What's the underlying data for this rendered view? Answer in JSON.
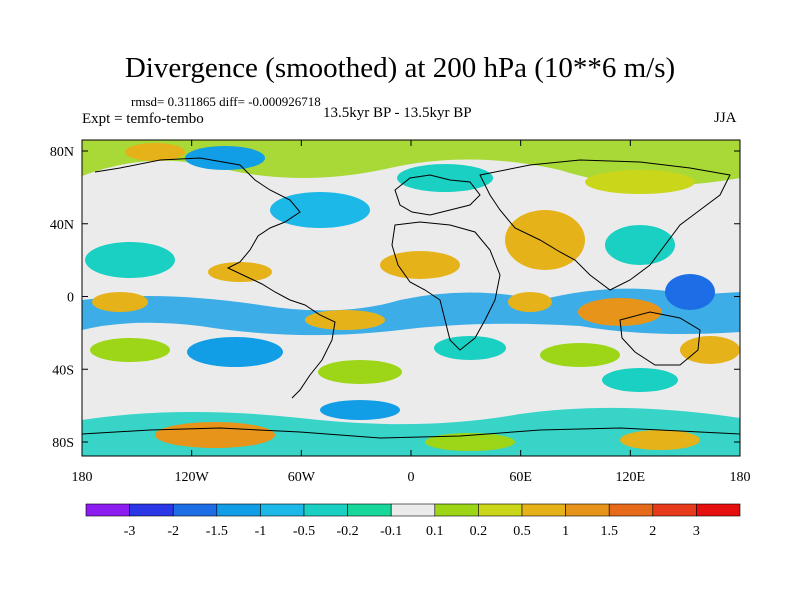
{
  "title": "Divergence (smoothed) at 200 hPa (10**6 m/s)",
  "stats": "rmsd= 0.311865 diff= -0.000926718",
  "experiment": "Expt = temfo-tembo",
  "period": "13.5kyr BP - 13.5kyr BP",
  "season": "JJA",
  "axes": {
    "y_labels": [
      "80N",
      "40N",
      "0",
      "40S",
      "80S"
    ],
    "x_labels": [
      "180",
      "120W",
      "60W",
      "0",
      "60E",
      "120E",
      "180"
    ]
  },
  "colorbar": {
    "labels": [
      "-3",
      "-2",
      "-1.5",
      "-1",
      "-0.5",
      "-0.2",
      "-0.1",
      "0.1",
      "0.2",
      "0.5",
      "1",
      "1.5",
      "2",
      "3"
    ],
    "colors": [
      "#8c1cf0",
      "#2b36e6",
      "#1d6ee6",
      "#129ee6",
      "#1bb8e8",
      "#19d0c2",
      "#17d89a",
      "#ebebeb",
      "#9cd616",
      "#c9d61a",
      "#e6b21a",
      "#e6941a",
      "#e66a1a",
      "#e63a1a",
      "#e60f0f"
    ]
  }
}
